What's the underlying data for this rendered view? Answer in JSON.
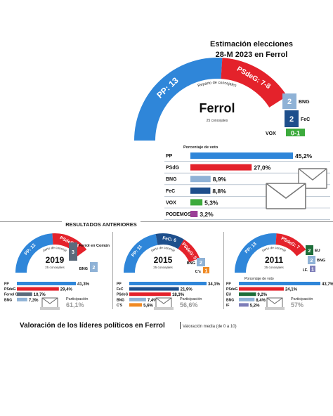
{
  "main": {
    "title_line1": "Estimación elecciones",
    "title_line2": "28-M  2023 en Ferrol",
    "city": "Ferrol",
    "councillors_note": "25 concejales",
    "reparto_label": "Reparto de concejales",
    "percent_label": "Porcentaje de voto"
  },
  "section_previous": "RESULTADOS ANTERIORES",
  "bottom_title": "Valoración de los líderes políticos en Ferrol",
  "bottom_subtitle": "Valoración media (de 0 a 10)",
  "colors": {
    "PP": "#2f86d9",
    "PSdeG": "#e4222b",
    "BNG": "#8fb2d6",
    "FeC": "#1e4f8c",
    "VOX": "#3caa3c",
    "PODEMOS": "#9b3e97",
    "FerrolCamon": "#5b6b7c",
    "EU": "#1e6e3a",
    "CS": "#f08a24",
    "IF": "#7d7db8"
  },
  "chart_data": [
    {
      "id": "estimacion_2023",
      "type": "bar",
      "title": "Estimación elecciones 28-M 2023 en Ferrol",
      "subtitle": "Porcentaje de voto",
      "categories": [
        "PP",
        "PSdG",
        "BNG",
        "FeC",
        "VOX",
        "PODEMOS"
      ],
      "values": [
        45.2,
        27.0,
        8.9,
        8.8,
        5.3,
        3.2
      ],
      "value_labels": [
        "45,2%",
        "27,0%",
        "8,9%",
        "8,8%",
        "5,3%",
        "3,2%"
      ],
      "parties": [
        "PP",
        "PSdeG",
        "BNG",
        "FeC",
        "VOX",
        "PODEMOS"
      ],
      "xlim": [
        0,
        45.2
      ],
      "seats_label": "Reparto de concejales",
      "seats_total": "25 concejales",
      "seats": [
        {
          "party": "PP",
          "label": "PP: 13"
        },
        {
          "party": "PSdeG",
          "label": "PSdeG: 7-8"
        },
        {
          "party": "BNG",
          "label": "2",
          "name": "BNG"
        },
        {
          "party": "FeC",
          "label": "2",
          "name": "FeC"
        },
        {
          "party": "VOX",
          "label": "0-1",
          "name": "VOX"
        }
      ]
    },
    {
      "id": "resultados_2019",
      "type": "bar",
      "year": "2019",
      "categories": [
        "PP",
        "PSdeG",
        "Ferrol C.",
        "BNG"
      ],
      "values": [
        41.3,
        29.4,
        10.7,
        7.3
      ],
      "value_labels": [
        "41,3%",
        "29,4%",
        "10,7%",
        "7,3%"
      ],
      "parties": [
        "PP",
        "PSdeG",
        "FerrolCamon",
        "BNG"
      ],
      "participation_label": "Participación",
      "participation": "61,1%",
      "seats_label": "Reparto de concejales",
      "seats_total": "25 concejales",
      "seats": [
        {
          "party": "PP",
          "label": "PP: 12"
        },
        {
          "party": "PSdeG",
          "label": "PSdeG: 8"
        },
        {
          "party": "FerrolCamon",
          "label": "3",
          "name": "Ferrol en Común"
        },
        {
          "party": "BNG",
          "label": "2",
          "name": "BNG"
        }
      ]
    },
    {
      "id": "resultados_2015",
      "type": "bar",
      "year": "2015",
      "categories": [
        "PP",
        "FeC",
        "PSdeG",
        "BNG",
        "C'S"
      ],
      "values": [
        34.1,
        21.9,
        18.3,
        7.4,
        5.6
      ],
      "value_labels": [
        "34,1%",
        "21,9%",
        "18,3%",
        "7,4%",
        "5,6%"
      ],
      "parties": [
        "PP",
        "FeC",
        "PSdeG",
        "BNG",
        "CS"
      ],
      "participation_label": "Participación",
      "participation": "56,6%",
      "seats_label": "Reparto de concejales",
      "seats_total": "25 concejales",
      "seats": [
        {
          "party": "PP",
          "label": "PP: 11"
        },
        {
          "party": "FeC",
          "label": "FeC: 6"
        },
        {
          "party": "PSdeG",
          "label": "PSdeG: 5"
        },
        {
          "party": "BNG",
          "label": "2",
          "name": "BNG"
        },
        {
          "party": "CS",
          "label": "1",
          "name": "C's"
        }
      ]
    },
    {
      "id": "resultados_2011",
      "type": "bar",
      "year": "2011",
      "categories": [
        "PP",
        "PSdeG",
        "EU",
        "BNG",
        "IF"
      ],
      "values": [
        43.7,
        24.1,
        9.2,
        8.4,
        5.2
      ],
      "value_labels": [
        "43,7%",
        "24,1%",
        "9,2%",
        "8,4%",
        "5,2%"
      ],
      "parties": [
        "PP",
        "PSdeG",
        "EU",
        "BNG",
        "IF"
      ],
      "participation_label": "Participación",
      "participation": "57%",
      "seats_label": "Reparto de concejales",
      "seats_total": "25 concejales",
      "percent_label": "Porcentaje de voto",
      "seats": [
        {
          "party": "PP",
          "label": "PP: 13"
        },
        {
          "party": "PSdeG",
          "label": "PSdeG: 7"
        },
        {
          "party": "EU",
          "label": "2",
          "name": "EU"
        },
        {
          "party": "BNG",
          "label": "2",
          "name": "BNG"
        },
        {
          "party": "IF",
          "label": "1",
          "name": "I.F."
        }
      ]
    }
  ]
}
